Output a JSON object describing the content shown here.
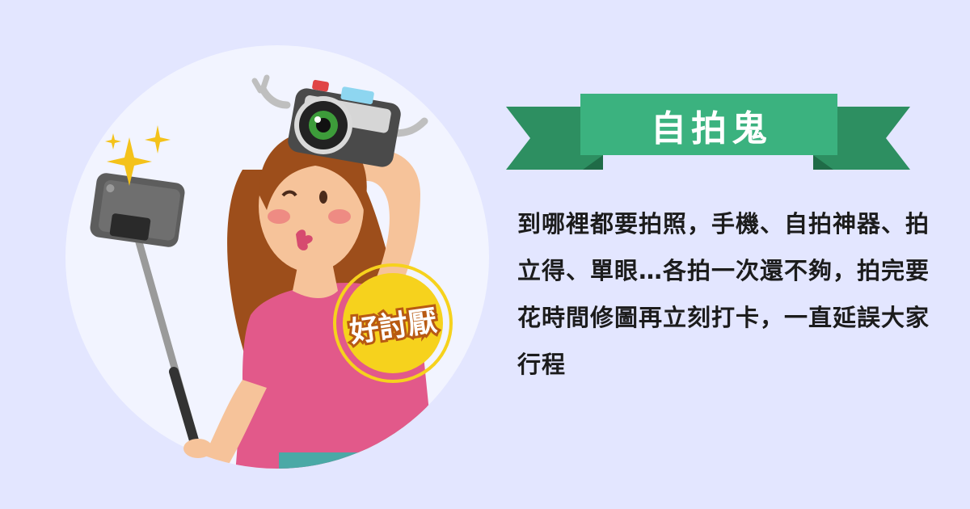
{
  "badge": {
    "text": "好討厭"
  },
  "title": "自拍鬼",
  "description": "到哪裡都要拍照，手機、自拍神器、拍立得、單眼…各拍一次還不夠，拍完要花時間修圖再立刻打卡，一直延誤大家行程",
  "colors": {
    "background": "#e3e6ff",
    "circle": "#f2f4ff",
    "ribbon_front": "#3bb27f",
    "ribbon_back": "#2d8f61",
    "badge_ring": "#f6d21d",
    "shirt": "#e2598a",
    "hair": "#9d4e1b"
  },
  "icons": [
    "selfie-stick-phone-icon",
    "camera-icon",
    "sparkle-icon"
  ]
}
